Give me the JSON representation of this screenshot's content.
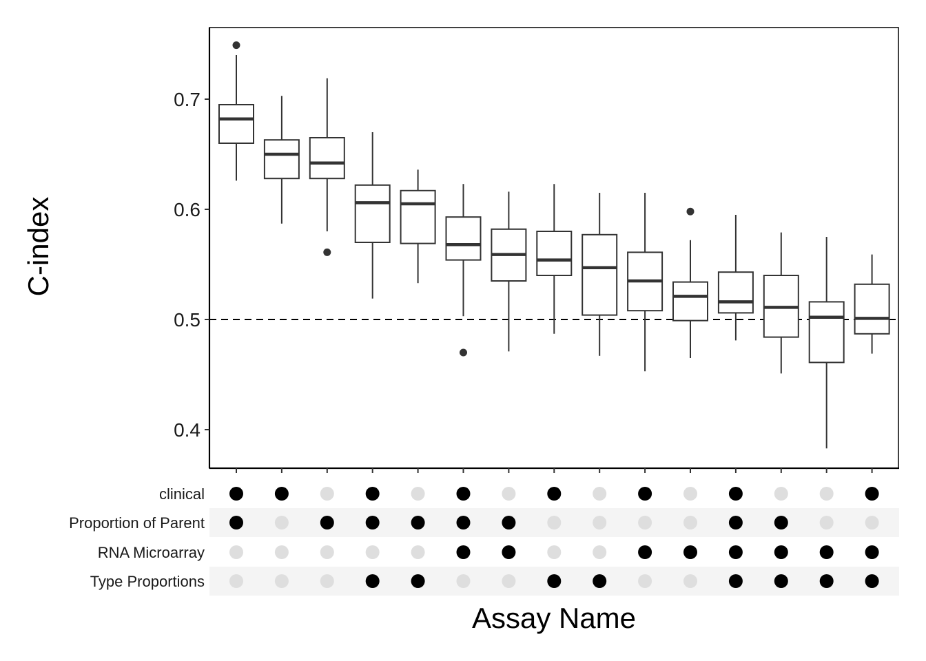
{
  "chart_data": {
    "type": "boxplot",
    "ylabel": "C-index",
    "xlabel": "Assay Name",
    "ylim": [
      0.365,
      0.765
    ],
    "yticks": [
      0.4,
      0.5,
      0.6,
      0.7
    ],
    "ytick_labels": [
      "0.4",
      "0.5",
      "0.6",
      "0.7"
    ],
    "reference_line": {
      "y": 0.5,
      "style": "dashed"
    },
    "boxes": [
      {
        "min": 0.626,
        "q1": 0.66,
        "median": 0.682,
        "q3": 0.695,
        "max": 0.74,
        "outliers": [
          0.749
        ]
      },
      {
        "min": 0.587,
        "q1": 0.628,
        "median": 0.65,
        "q3": 0.663,
        "max": 0.703,
        "outliers": []
      },
      {
        "min": 0.58,
        "q1": 0.628,
        "median": 0.642,
        "q3": 0.665,
        "max": 0.719,
        "outliers": [
          0.561
        ]
      },
      {
        "min": 0.519,
        "q1": 0.57,
        "median": 0.606,
        "q3": 0.622,
        "max": 0.67,
        "outliers": []
      },
      {
        "min": 0.533,
        "q1": 0.569,
        "median": 0.605,
        "q3": 0.617,
        "max": 0.636,
        "outliers": []
      },
      {
        "min": 0.503,
        "q1": 0.554,
        "median": 0.568,
        "q3": 0.593,
        "max": 0.623,
        "outliers": [
          0.47
        ]
      },
      {
        "min": 0.471,
        "q1": 0.535,
        "median": 0.559,
        "q3": 0.582,
        "max": 0.616,
        "outliers": []
      },
      {
        "min": 0.487,
        "q1": 0.54,
        "median": 0.554,
        "q3": 0.58,
        "max": 0.623,
        "outliers": []
      },
      {
        "min": 0.467,
        "q1": 0.504,
        "median": 0.547,
        "q3": 0.577,
        "max": 0.615,
        "outliers": []
      },
      {
        "min": 0.453,
        "q1": 0.508,
        "median": 0.535,
        "q3": 0.561,
        "max": 0.615,
        "outliers": []
      },
      {
        "min": 0.465,
        "q1": 0.499,
        "median": 0.521,
        "q3": 0.534,
        "max": 0.572,
        "outliers": [
          0.598
        ]
      },
      {
        "min": 0.481,
        "q1": 0.506,
        "median": 0.516,
        "q3": 0.543,
        "max": 0.595,
        "outliers": []
      },
      {
        "min": 0.451,
        "q1": 0.484,
        "median": 0.511,
        "q3": 0.54,
        "max": 0.579,
        "outliers": []
      },
      {
        "min": 0.383,
        "q1": 0.461,
        "median": 0.502,
        "q3": 0.516,
        "max": 0.575,
        "outliers": []
      },
      {
        "min": 0.469,
        "q1": 0.487,
        "median": 0.501,
        "q3": 0.532,
        "max": 0.559,
        "outliers": []
      }
    ],
    "matrix": {
      "rows": [
        {
          "label": "clinical",
          "values": [
            1,
            1,
            0,
            1,
            0,
            1,
            0,
            1,
            0,
            1,
            0,
            1,
            0,
            0,
            1
          ]
        },
        {
          "label": "Proportion of Parent",
          "values": [
            1,
            0,
            1,
            1,
            1,
            1,
            1,
            0,
            0,
            0,
            0,
            1,
            1,
            0,
            0
          ]
        },
        {
          "label": "RNA Microarray",
          "values": [
            0,
            0,
            0,
            0,
            0,
            1,
            1,
            0,
            0,
            1,
            1,
            1,
            1,
            1,
            1
          ]
        },
        {
          "label": "Type Proportions",
          "values": [
            0,
            0,
            0,
            1,
            1,
            0,
            0,
            1,
            1,
            0,
            0,
            1,
            1,
            1,
            1
          ]
        }
      ]
    },
    "colors": {
      "box_stroke": "#333333",
      "dot_on": "#000000",
      "dot_off": "#dedede",
      "stripe": "#f4f4f4"
    }
  }
}
